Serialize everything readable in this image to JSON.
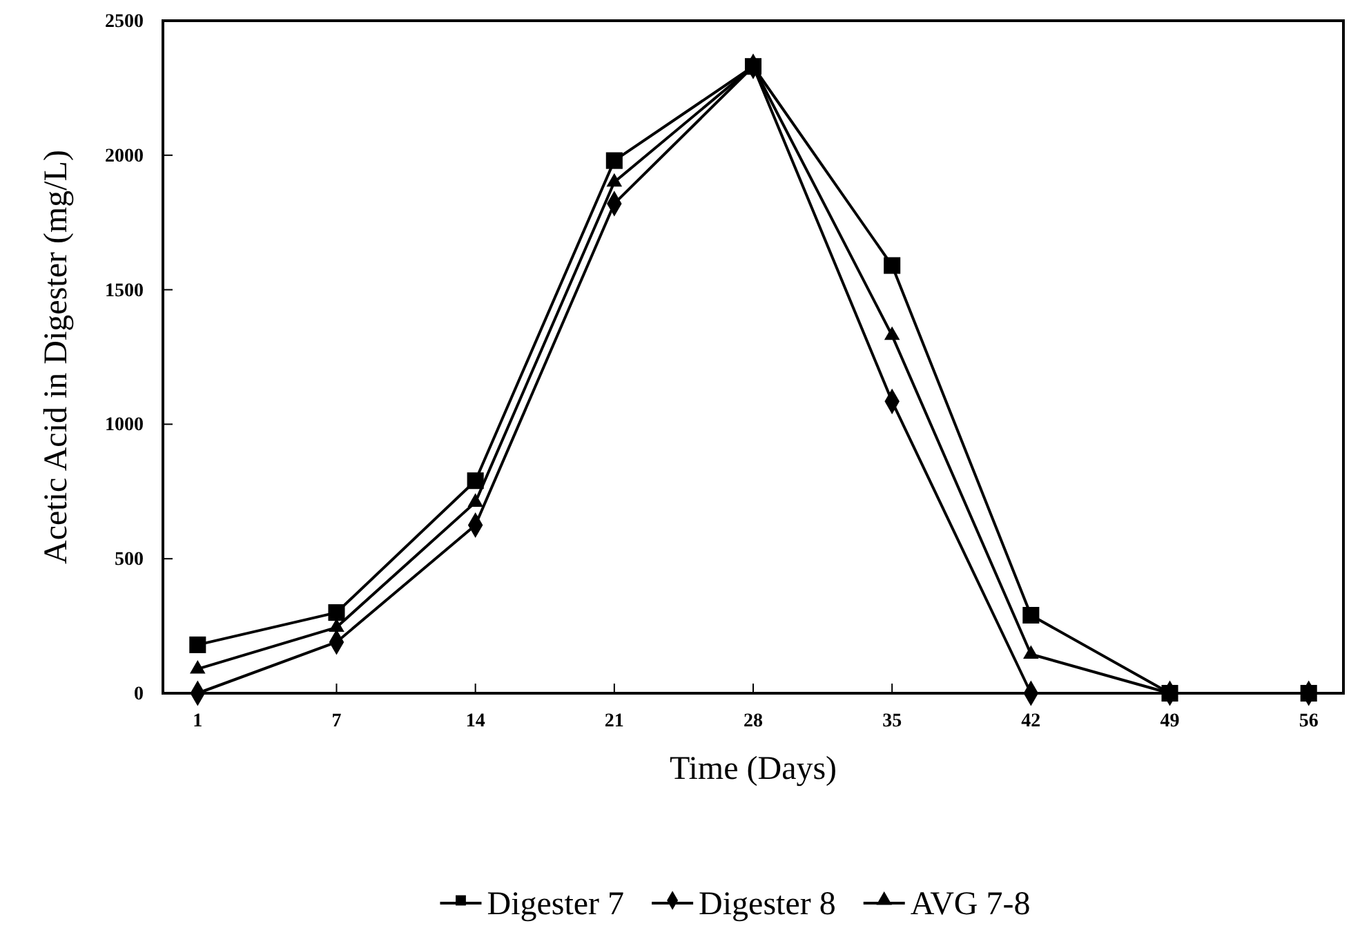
{
  "chart_data": {
    "type": "line",
    "xlabel": "Time (Days)",
    "ylabel": "Acetic Acid in Digester (mg/L)",
    "categories": [
      "1",
      "7",
      "14",
      "21",
      "28",
      "35",
      "42",
      "49",
      "56"
    ],
    "series": [
      {
        "name": "Digester 7",
        "color": "#000000",
        "marker": "square",
        "values": [
          180,
          300,
          790,
          1980,
          2330,
          1590,
          290,
          0,
          0
        ]
      },
      {
        "name": "Digester 8",
        "color": "#000000",
        "marker": "diamond",
        "values": [
          0,
          190,
          625,
          1820,
          2330,
          1085,
          0,
          0,
          0
        ]
      },
      {
        "name": "AVG 7-8",
        "color": "#000000",
        "marker": "triangle",
        "values": [
          90,
          245,
          710,
          1900,
          2330,
          1330,
          145,
          0,
          0
        ]
      }
    ],
    "ylim": [
      0,
      2500
    ],
    "yticks": [
      0,
      500,
      1000,
      1500,
      2000,
      2500
    ],
    "grid": false,
    "legend": "bottom",
    "line_style": "solid"
  }
}
